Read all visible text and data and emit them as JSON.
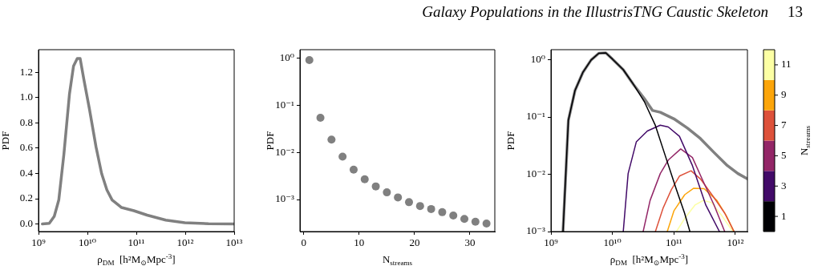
{
  "chart_data": [
    {
      "type": "other",
      "title": "Galaxy Populations in the IllustrisTNG Caustic Skeleton",
      "annotations": [
        "13"
      ]
    },
    {
      "type": "line",
      "xlabel": "ρ$_{DM}$  [h²M$_{⊙}$Mpc$^{-3}$]",
      "ylabel": "PDF",
      "log": "x",
      "color": "#808080",
      "marker": "none",
      "x": [
        1200000000.0,
        1660000000.0,
        2100000000.0,
        2600000000.0,
        3300000000.0,
        4300000000.0,
        5200000000.0,
        6200000000.0,
        7100000000.0,
        8500000000.0,
        11000000000.0,
        15000000000.0,
        19500000000.0,
        25000000000.0,
        32000000000.0,
        50000000000.0,
        89000000000.0,
        166000000000.0,
        400000000000.0,
        980000000000.0,
        3000000000000.0,
        10000000000000.0
      ],
      "values": [
        0,
        0.005,
        0.06,
        0.19,
        0.55,
        1.03,
        1.25,
        1.31,
        1.31,
        1.14,
        0.91,
        0.61,
        0.4,
        0.27,
        0.19,
        0.13,
        0.105,
        0.07,
        0.03,
        0.01,
        0.002,
        0
      ],
      "xlim": [
        1000000000.0,
        10000000000000.0
      ],
      "xticks": [
        {
          "value": 1000000000.0,
          "label": "10⁹"
        },
        {
          "value": 10000000000.0,
          "label": "10¹⁰"
        },
        {
          "value": 100000000000.0,
          "label": "10¹¹"
        },
        {
          "value": 1000000000000.0,
          "label": "10¹²"
        },
        {
          "value": 10000000000000.0,
          "label": "10¹³"
        }
      ],
      "ylim": [
        -0.06,
        1.38
      ],
      "yticks": [
        {
          "value": 0,
          "label": "0.0"
        },
        {
          "value": 0.2,
          "label": "0.2"
        },
        {
          "value": 0.4,
          "label": "0.4"
        },
        {
          "value": 0.6,
          "label": "0.6"
        },
        {
          "value": 0.8,
          "label": "0.8"
        },
        {
          "value": 1,
          "label": "1.0"
        },
        {
          "value": 1.2,
          "label": "1.2"
        }
      ]
    },
    {
      "type": "scatter",
      "xlabel": "N$_{streams}$",
      "ylabel": "PDF",
      "log": "y",
      "color": "#808080",
      "marker": "circle",
      "x": [
        1,
        3,
        5,
        7,
        9,
        11,
        13,
        15,
        17,
        19,
        21,
        23,
        25,
        27,
        29,
        31,
        33
      ],
      "values": [
        0.9,
        0.054,
        0.0187,
        0.0081,
        0.0043,
        0.0027,
        0.0019,
        0.00142,
        0.00111,
        0.00088,
        0.00073,
        0.00063,
        0.00054,
        0.00046,
        0.00039,
        0.00034,
        0.00031
      ],
      "xlim": [
        -0.7,
        34.5
      ],
      "xticks": [
        0,
        10,
        20,
        30
      ],
      "ylim": [
        0.00021,
        1.5
      ],
      "yticks": [
        {
          "value": 1,
          "label": "10⁰"
        },
        {
          "value": 0.1,
          "label": "10⁻¹"
        },
        {
          "value": 0.01,
          "label": "10⁻²"
        },
        {
          "value": 0.001,
          "label": "10⁻³"
        }
      ]
    },
    {
      "type": "line",
      "xlabel": "ρ$_{DM}$  [h²M$_{⊙}$Mpc$^{-3}$]",
      "ylabel": "PDF",
      "log": "xy",
      "marker": "none",
      "clabel": "N$_{streams}$",
      "clim": [
        0,
        12
      ],
      "cticks": [
        1,
        3,
        5,
        7,
        9,
        11
      ],
      "xlim": [
        1000000000.0,
        1570000000000.0
      ],
      "xticks": [
        {
          "value": 1000000000.0,
          "label": "10⁹"
        },
        {
          "value": 10000000000.0,
          "label": "10¹⁰"
        },
        {
          "value": 100000000000.0,
          "label": "10¹¹"
        },
        {
          "value": 1000000000000.0,
          "label": "10¹²"
        }
      ],
      "ylim": [
        0.001,
        1.5
      ],
      "yticks": [
        {
          "value": 1,
          "label": "10⁰"
        },
        {
          "value": 0.1,
          "label": "10⁻¹"
        },
        {
          "value": 0.01,
          "label": "10⁻²"
        },
        {
          "value": 0.001,
          "label": "10⁻³"
        }
      ],
      "series": [
        {
          "color": "#000004",
          "x": [
            1570000000.0,
            1920000000.0,
            2460000000.0,
            3300000000.0,
            4500000000.0,
            6000000000.0,
            7800000000.0,
            10000000000.0,
            15000000000.0,
            22000000000.0,
            33000000000.0,
            50000000000.0,
            74000000000.0,
            110000000000.0,
            149000000000.0,
            182000000000.0
          ],
          "values": [
            0.001,
            0.088,
            0.29,
            0.6,
            0.99,
            1.3,
            1.32,
            1.03,
            0.67,
            0.37,
            0.186,
            0.071,
            0.0196,
            0.0054,
            0.0021,
            0.001
          ]
        },
        {
          "color": "#420a68",
          "x": [
            15000000000.0,
            18000000000.0,
            24500000000.0,
            37000000000.0,
            60000000000.0,
            81000000000.0,
            123000000000.0,
            200000000000.0,
            330000000000.0,
            550000000000.0
          ],
          "values": [
            0.001,
            0.0103,
            0.037,
            0.057,
            0.072,
            0.067,
            0.046,
            0.0142,
            0.0029,
            0.001
          ]
        },
        {
          "color": "#932667",
          "x": [
            31600000000.0,
            41000000000.0,
            60000000000.0,
            81000000000.0,
            129000000000.0,
            200000000000.0,
            300000000000.0,
            450000000000.0,
            670000000000.0
          ],
          "values": [
            0.001,
            0.0035,
            0.0103,
            0.0177,
            0.0277,
            0.0196,
            0.0075,
            0.0029,
            0.001
          ]
        },
        {
          "color": "#dd513a",
          "x": [
            50000000000.0,
            67000000000.0,
            91000000000.0,
            123000000000.0,
            190000000000.0,
            270000000000.0,
            450000000000.0,
            670000000000.0,
            950000000000.0
          ],
          "values": [
            0.001,
            0.0026,
            0.0054,
            0.0093,
            0.0115,
            0.0083,
            0.0039,
            0.0021,
            0.001
          ]
        },
        {
          "color": "#fca50a",
          "x": [
            78000000000.0,
            100000000000.0,
            150000000000.0,
            210000000000.0,
            310000000000.0,
            500000000000.0,
            710000000000.0,
            950000000000.0
          ],
          "values": [
            0.001,
            0.0023,
            0.0044,
            0.0057,
            0.0056,
            0.0035,
            0.0019,
            0.001
          ]
        },
        {
          "color": "#fcffa4",
          "x": [
            110000000000.0,
            150000000000.0,
            220000000000.0,
            300000000000.0,
            410000000000.0,
            600000000000.0,
            910000000000.0
          ],
          "values": [
            0.001,
            0.0017,
            0.0029,
            0.0035,
            0.0032,
            0.0019,
            0.001
          ]
        },
        {
          "color": "#808080",
          "x": [
            1570000000.0,
            1920000000.0,
            2460000000.0,
            3300000000.0,
            4500000000.0,
            6000000000.0,
            7800000000.0,
            10000000000.0,
            15000000000.0,
            22000000000.0,
            33000000000.0,
            45000000000.0,
            60000000000.0,
            100000000000.0,
            166000000000.0,
            270000000000.0,
            450000000000.0,
            740000000000.0,
            1100000000000.0,
            1570000000000.0
          ],
          "values": [
            0.001,
            0.088,
            0.29,
            0.6,
            0.99,
            1.3,
            1.32,
            1.03,
            0.67,
            0.37,
            0.21,
            0.13,
            0.121,
            0.093,
            0.064,
            0.042,
            0.024,
            0.0142,
            0.0103,
            0.0083
          ]
        }
      ]
    }
  ]
}
